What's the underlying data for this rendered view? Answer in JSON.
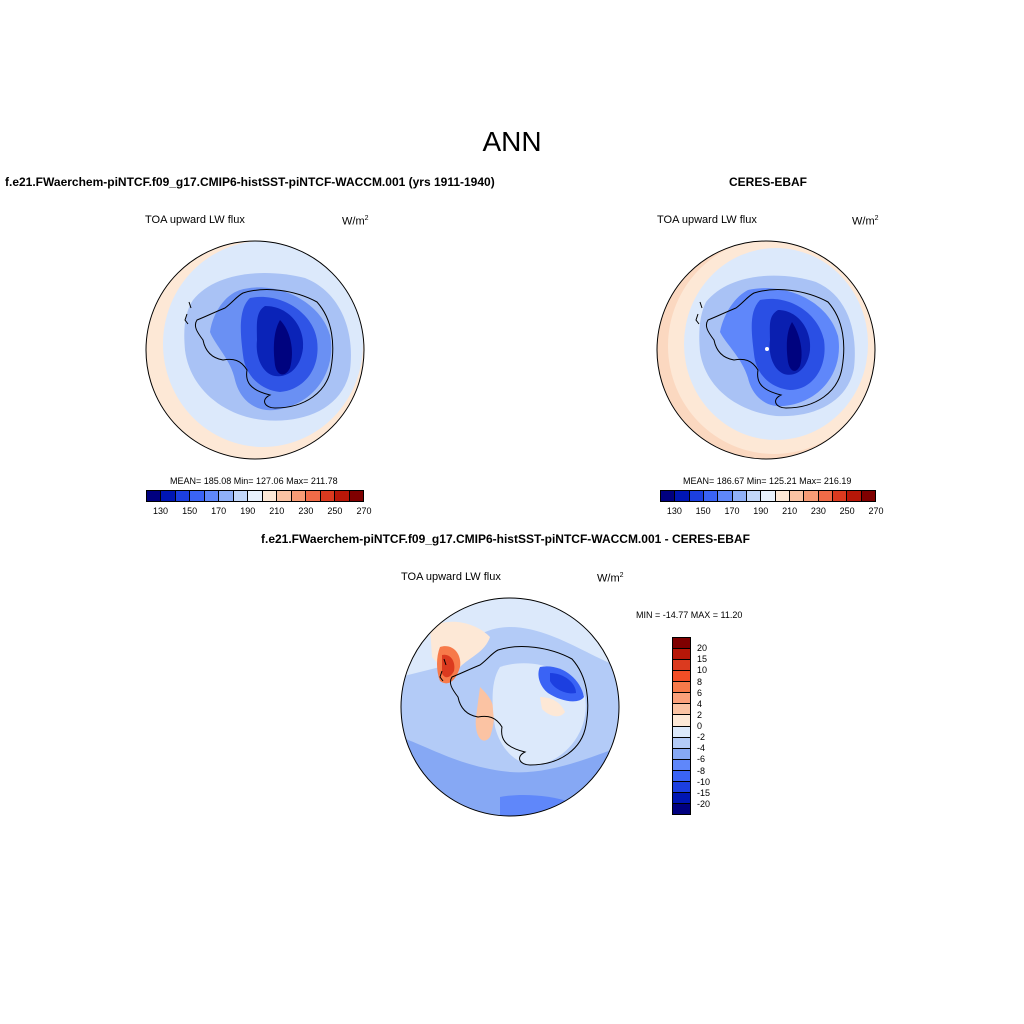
{
  "figure": {
    "title": "ANN"
  },
  "panels": [
    {
      "id": "model",
      "title": "f.e21.FWaerchem-piNTCF.f09_g17.CMIP6-histSST-piNTCF-WACCM.001 (yrs 1911-1940)",
      "variable": "TOA upward LW flux",
      "units_base": "W/m",
      "units_exp": "2",
      "stats": "MEAN= 185.08  Min= 127.06  Max= 211.78",
      "colorbar_ticks": [
        "130",
        "150",
        "170",
        "190",
        "210",
        "230",
        "250",
        "270"
      ]
    },
    {
      "id": "obs",
      "title": "CERES-EBAF",
      "variable": "TOA upward LW flux",
      "units_base": "W/m",
      "units_exp": "2",
      "stats": "MEAN= 186.67  Min= 125.21  Max= 216.19",
      "colorbar_ticks": [
        "130",
        "150",
        "170",
        "190",
        "210",
        "230",
        "250",
        "270"
      ]
    },
    {
      "id": "diff",
      "title": "f.e21.FWaerchem-piNTCF.f09_g17.CMIP6-histSST-piNTCF-WACCM.001 - CERES-EBAF",
      "variable": "TOA upward LW flux",
      "units_base": "W/m",
      "units_exp": "2",
      "stats": "MIN = -14.77 MAX =  11.20",
      "colorbar_ticks": [
        "20",
        "15",
        "10",
        "8",
        "6",
        "4",
        "2",
        "0",
        "-2",
        "-4",
        "-6",
        "-8",
        "-10",
        "-15",
        "-20"
      ]
    }
  ],
  "colors": {
    "abs_scale": [
      "#00007f",
      "#0016b3",
      "#1c3fe0",
      "#3a63f5",
      "#5f87fa",
      "#8fb0f8",
      "#c2d7fa",
      "#e8f1fc",
      "#fde8d6",
      "#fbc3a3",
      "#f79b75",
      "#f06b47",
      "#db3a1f",
      "#b71708",
      "#7f0000"
    ],
    "diff_scale": [
      "#7f0000",
      "#b71708",
      "#db3a1f",
      "#f24e26",
      "#f77a4a",
      "#fba07a",
      "#fbc3a3",
      "#fde8d6",
      "#dce9fb",
      "#b3cbf7",
      "#86a8f4",
      "#5f87fa",
      "#3a63f5",
      "#1c3fe0",
      "#0016b3",
      "#00007f"
    ]
  }
}
